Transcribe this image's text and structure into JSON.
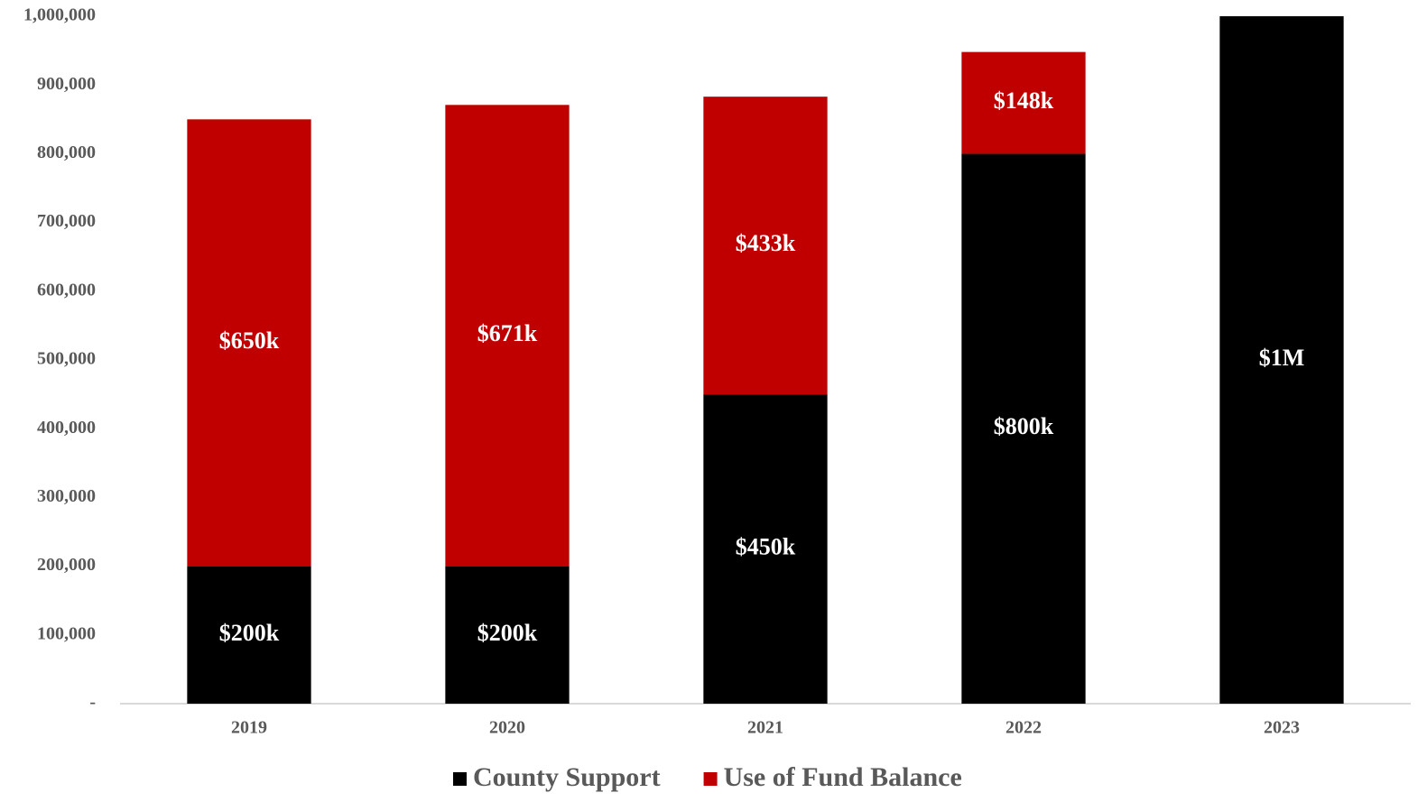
{
  "chart_data": {
    "type": "stacked_bar",
    "categories": [
      "2019",
      "2020",
      "2021",
      "2022",
      "2023"
    ],
    "series": [
      {
        "name": "County Support",
        "color": "#000000",
        "values": [
          200000,
          200000,
          450000,
          800000,
          1000000
        ],
        "value_labels": [
          "$200k",
          "$200k",
          "$450k",
          "$800k",
          "$1M"
        ]
      },
      {
        "name": "Use of Fund Balance",
        "color": "#c00000",
        "values": [
          650000,
          671000,
          433000,
          148000,
          null
        ],
        "value_labels": [
          "$650k",
          "$671k",
          "$433k",
          "$148k",
          null
        ]
      }
    ],
    "ylim": [
      0,
      1000000
    ],
    "yticks": [
      {
        "value": 0,
        "label": "-"
      },
      {
        "value": 100000,
        "label": "100,000"
      },
      {
        "value": 200000,
        "label": "200,000"
      },
      {
        "value": 300000,
        "label": "300,000"
      },
      {
        "value": 400000,
        "label": "400,000"
      },
      {
        "value": 500000,
        "label": "500,000"
      },
      {
        "value": 600000,
        "label": "600,000"
      },
      {
        "value": 700000,
        "label": "700,000"
      },
      {
        "value": 800000,
        "label": "800,000"
      },
      {
        "value": 900000,
        "label": "900,000"
      },
      {
        "value": 1000000,
        "label": "1,000,000"
      }
    ],
    "grid": false,
    "legend": "bottom"
  }
}
